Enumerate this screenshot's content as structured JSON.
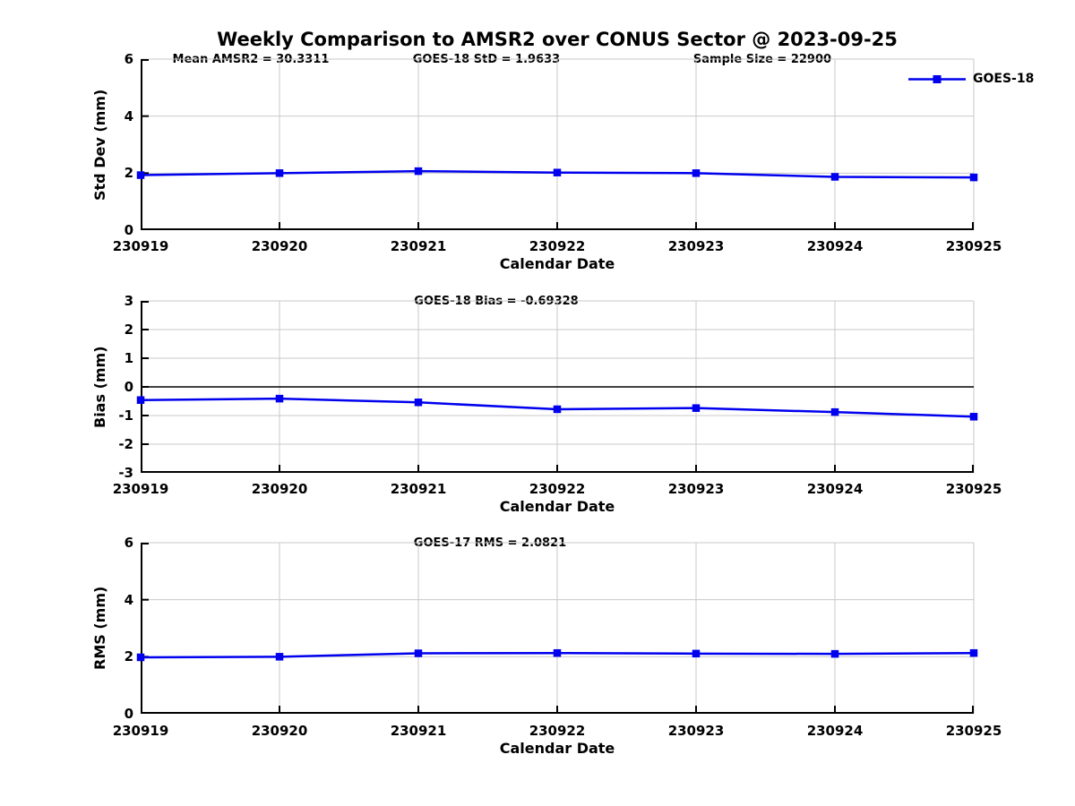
{
  "figure": {
    "title": "Weekly Comparison to AMSR2 over CONUS Sector @ 2023-09-25",
    "background_color": "#ffffff",
    "grid_color": "#c9c9c9",
    "axis_color": "#000000",
    "accent_color": "#0000ee"
  },
  "chart_data": [
    {
      "type": "line",
      "annotations": [
        "Mean AMSR2 = 30.3311",
        "GOES-18 StD = 1.9633",
        "Sample Size = 22900"
      ],
      "xlabel": "Calendar Date",
      "ylabel": "Std Dev (mm)",
      "categories": [
        "230919",
        "230920",
        "230921",
        "230922",
        "230923",
        "230924",
        "230925"
      ],
      "ylim": [
        0,
        6
      ],
      "yticks": [
        0,
        2,
        4,
        6
      ],
      "grid": true,
      "legend": {
        "label": "GOES-18",
        "position": "top-right",
        "marker": "square"
      },
      "series": [
        {
          "name": "GOES-18",
          "color": "#0000ee",
          "marker": "square",
          "values": [
            1.93,
            2.0,
            2.07,
            2.02,
            2.0,
            1.87,
            1.85
          ]
        }
      ]
    },
    {
      "type": "line",
      "annotations": [
        "GOES-18 Bias  = -0.69328"
      ],
      "xlabel": "Calendar Date",
      "ylabel": "Bias (mm)",
      "categories": [
        "230919",
        "230920",
        "230921",
        "230922",
        "230923",
        "230924",
        "230925"
      ],
      "ylim": [
        -3,
        3
      ],
      "yticks": [
        -3,
        -2,
        -1,
        0,
        1,
        2,
        3
      ],
      "grid": true,
      "zero_line": true,
      "series": [
        {
          "name": "GOES-18",
          "color": "#0000ee",
          "marker": "square",
          "values": [
            -0.46,
            -0.41,
            -0.54,
            -0.78,
            -0.74,
            -0.88,
            -1.04
          ]
        }
      ]
    },
    {
      "type": "line",
      "annotations": [
        "GOES-17 RMS = 2.0821"
      ],
      "xlabel": "Calendar Date",
      "ylabel": "RMS (mm)",
      "categories": [
        "230919",
        "230920",
        "230921",
        "230922",
        "230923",
        "230924",
        "230925"
      ],
      "ylim": [
        0,
        6
      ],
      "yticks": [
        0,
        2,
        4,
        6
      ],
      "grid": true,
      "series": [
        {
          "name": "GOES-18",
          "color": "#0000ee",
          "marker": "square",
          "values": [
            1.98,
            2.0,
            2.12,
            2.13,
            2.11,
            2.1,
            2.13
          ]
        }
      ]
    }
  ]
}
